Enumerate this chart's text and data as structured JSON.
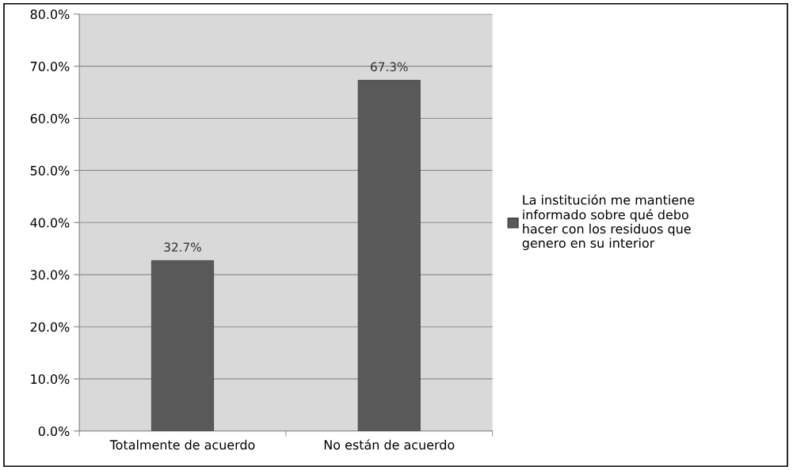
{
  "chart_data": {
    "type": "bar",
    "categories": [
      "Totalmente de acuerdo",
      "No están de acuerdo"
    ],
    "series": [
      {
        "name": "La institución me mantiene\ninformado sobre qué debo\nhacer con los residuos que\ngenero en su interior",
        "color": "#595959",
        "values": [
          32.7,
          67.3
        ],
        "value_labels": [
          "32.7%",
          "67.3%"
        ]
      }
    ],
    "ylim": [
      0,
      80
    ],
    "yticks": [
      {
        "value": 0,
        "label": "0.0%"
      },
      {
        "value": 10,
        "label": "10.0%"
      },
      {
        "value": 20,
        "label": "20.0%"
      },
      {
        "value": 30,
        "label": "30.0%"
      },
      {
        "value": 40,
        "label": "40.0%"
      },
      {
        "value": 50,
        "label": "50.0%"
      },
      {
        "value": 60,
        "label": "60.0%"
      },
      {
        "value": 70,
        "label": "70.0%"
      },
      {
        "value": 80,
        "label": "80.0%"
      }
    ],
    "grid": "y",
    "legend": "right"
  }
}
